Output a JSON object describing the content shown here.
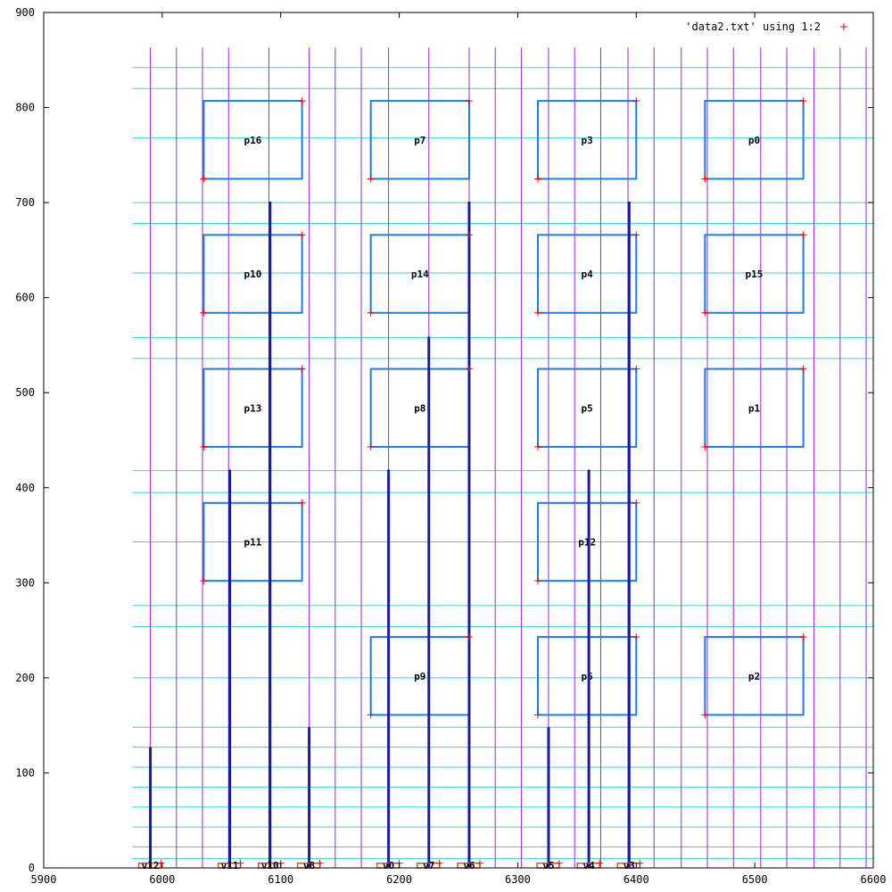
{
  "chart_data": {
    "type": "scatter",
    "title": "",
    "xlabel": "",
    "ylabel": "",
    "xlim": [
      5900,
      6600
    ],
    "ylim": [
      0,
      900
    ],
    "x_ticks": [
      5900,
      6000,
      6100,
      6200,
      6300,
      6400,
      6500,
      6600
    ],
    "y_ticks": [
      0,
      100,
      200,
      300,
      400,
      500,
      600,
      700,
      800,
      900
    ],
    "grid": false,
    "legend": {
      "placement": "top-right",
      "entries": [
        {
          "label": "'data2.txt' using 1:2",
          "marker": "+",
          "color": "#ff0000"
        }
      ]
    },
    "colors": {
      "vertical_lines": "#9c27d6",
      "horizontal_lines": "#33d6d6",
      "boxes": "#1a7fe0",
      "bars": "#1a1aa8",
      "points": "#ff0000",
      "small_boxes": "#e0501a"
    },
    "vertical_guides_x": [
      5990,
      6012,
      6034,
      6056,
      6090,
      6124,
      6146,
      6168,
      6191,
      6225,
      6259,
      6281,
      6303,
      6326,
      6348,
      6370,
      6393,
      6415,
      6438,
      6460,
      6482,
      6505,
      6527,
      6550,
      6572,
      6594
    ],
    "horizontal_guides_y": [
      10,
      22,
      43,
      64,
      85,
      106,
      127,
      148,
      200,
      254,
      276,
      343,
      395,
      418,
      536,
      558,
      626,
      678,
      700,
      768,
      820,
      842
    ],
    "pins": [
      {
        "label": "v12",
        "x": 5990,
        "height": 127
      },
      {
        "label": "v11",
        "x": 6057,
        "height": 419
      },
      {
        "label": "v10",
        "x": 6091,
        "height": 701
      },
      {
        "label": "v8",
        "x": 6124,
        "height": 148
      },
      {
        "label": "v0",
        "x": 6191,
        "height": 419
      },
      {
        "label": "v7",
        "x": 6225,
        "height": 559
      },
      {
        "label": "v6",
        "x": 6259,
        "height": 701
      },
      {
        "label": "v5",
        "x": 6326,
        "height": 148
      },
      {
        "label": "v4",
        "x": 6360,
        "height": 419
      },
      {
        "label": "v3",
        "x": 6394,
        "height": 701
      }
    ],
    "blocks": [
      {
        "label": "p16",
        "x0": 6035,
        "x1": 6118,
        "y0": 725,
        "y1": 807
      },
      {
        "label": "p7",
        "x0": 6176,
        "x1": 6259,
        "y0": 725,
        "y1": 807
      },
      {
        "label": "p3",
        "x0": 6317,
        "x1": 6400,
        "y0": 725,
        "y1": 807
      },
      {
        "label": "p0",
        "x0": 6458,
        "x1": 6541,
        "y0": 725,
        "y1": 807
      },
      {
        "label": "p10",
        "x0": 6035,
        "x1": 6118,
        "y0": 584,
        "y1": 666
      },
      {
        "label": "p14",
        "x0": 6176,
        "x1": 6259,
        "y0": 584,
        "y1": 666
      },
      {
        "label": "p4",
        "x0": 6317,
        "x1": 6400,
        "y0": 584,
        "y1": 666
      },
      {
        "label": "p15",
        "x0": 6458,
        "x1": 6541,
        "y0": 584,
        "y1": 666
      },
      {
        "label": "p13",
        "x0": 6035,
        "x1": 6118,
        "y0": 443,
        "y1": 525
      },
      {
        "label": "p8",
        "x0": 6176,
        "x1": 6259,
        "y0": 443,
        "y1": 525
      },
      {
        "label": "p5",
        "x0": 6317,
        "x1": 6400,
        "y0": 443,
        "y1": 525
      },
      {
        "label": "p1",
        "x0": 6458,
        "x1": 6541,
        "y0": 443,
        "y1": 525
      },
      {
        "label": "p11",
        "x0": 6035,
        "x1": 6118,
        "y0": 302,
        "y1": 384
      },
      {
        "label": "p12",
        "x0": 6317,
        "x1": 6400,
        "y0": 302,
        "y1": 384
      },
      {
        "label": "p9",
        "x0": 6176,
        "x1": 6259,
        "y0": 161,
        "y1": 243
      },
      {
        "label": "p6",
        "x0": 6317,
        "x1": 6400,
        "y0": 161,
        "y1": 243
      },
      {
        "label": "p2",
        "x0": 6458,
        "x1": 6541,
        "y0": 161,
        "y1": 243
      }
    ]
  }
}
